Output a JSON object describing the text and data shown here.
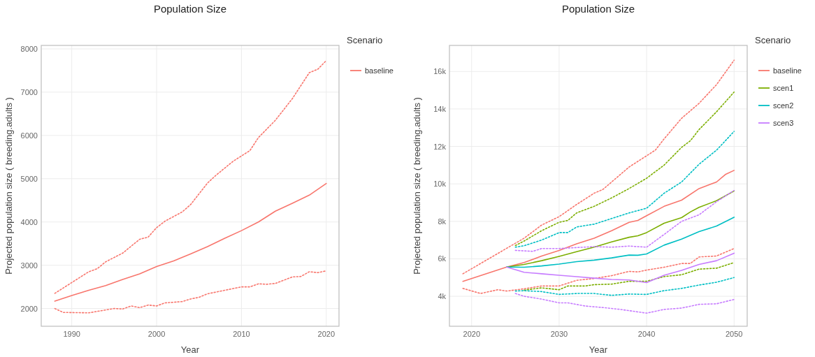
{
  "chart_data": [
    {
      "type": "line",
      "title": "Population Size",
      "xlabel": "Year",
      "ylabel": "Projected population size ( breeding.adults )",
      "legend_title": "Scenario",
      "legend": "right",
      "grid": true,
      "xlim": [
        1986.4,
        2021.5
      ],
      "xticks": [
        1990,
        2000,
        2010,
        2020
      ],
      "ylim": [
        1590,
        8080
      ],
      "yticks": [
        2000,
        3000,
        4000,
        5000,
        6000,
        7000,
        8000
      ],
      "series": [
        {
          "name": "baseline",
          "color": "#f8766d",
          "line_style": "solid",
          "x": [
            1988,
            1990,
            1992,
            1994,
            1996,
            1998,
            2000,
            2002,
            2004,
            2006,
            2008,
            2010,
            2012,
            2014,
            2016,
            2018,
            2020
          ],
          "values": [
            2170,
            2300,
            2420,
            2530,
            2670,
            2800,
            2970,
            3100,
            3260,
            3430,
            3620,
            3800,
            4000,
            4250,
            4430,
            4620,
            4890
          ]
        },
        {
          "color": "#f8766d",
          "line_style": "dotted",
          "x": [
            1988,
            1990,
            1992,
            1993,
            1994,
            1996,
            1998,
            1999,
            2000,
            2001,
            2003,
            2004,
            2006,
            2007,
            2009,
            2011,
            2012,
            2014,
            2016,
            2018,
            2019,
            2020
          ],
          "values": [
            2350,
            2600,
            2850,
            2920,
            3080,
            3280,
            3600,
            3650,
            3870,
            4020,
            4230,
            4400,
            4900,
            5080,
            5400,
            5650,
            5950,
            6350,
            6850,
            7450,
            7530,
            7730
          ]
        },
        {
          "color": "#f8766d",
          "line_style": "dotted",
          "x": [
            1988,
            1989,
            1992,
            1995,
            1996,
            1997,
            1998,
            1999,
            2000,
            2001,
            2003,
            2004,
            2005,
            2006,
            2008,
            2010,
            2011,
            2012,
            2013,
            2014,
            2016,
            2017,
            2018,
            2019,
            2020
          ],
          "values": [
            2000,
            1910,
            1900,
            2000,
            1990,
            2060,
            2020,
            2080,
            2060,
            2130,
            2160,
            2220,
            2260,
            2340,
            2420,
            2500,
            2500,
            2570,
            2560,
            2580,
            2730,
            2740,
            2850,
            2830,
            2870
          ]
        }
      ]
    },
    {
      "type": "line",
      "title": "Population Size",
      "xlabel": "Year",
      "ylabel": "Projected population size ( breeding.adults )",
      "legend_title": "Scenario",
      "legend": "right",
      "grid": true,
      "xlim": [
        2017.46,
        2051.5
      ],
      "xticks": [
        2020,
        2030,
        2040,
        2050
      ],
      "ylim": [
        2400,
        17390
      ],
      "yticks": [
        {
          "value": 4000,
          "label": "4k"
        },
        {
          "value": 6000,
          "label": "6k"
        },
        {
          "value": 8000,
          "label": "8k"
        },
        {
          "value": 10000,
          "label": "10k"
        },
        {
          "value": 12000,
          "label": "12k"
        },
        {
          "value": 14000,
          "label": "14k"
        },
        {
          "value": 16000,
          "label": "16k"
        }
      ],
      "series": [
        {
          "name": "baseline",
          "color": "#f8766d",
          "line_style": "solid",
          "x": [
            2019,
            2024,
            2026,
            2028,
            2030,
            2032,
            2034,
            2036,
            2038,
            2039,
            2040,
            2042,
            2044,
            2046,
            2048,
            2049,
            2050
          ],
          "values": [
            4800,
            5560,
            5800,
            6150,
            6450,
            6800,
            7100,
            7500,
            7950,
            8050,
            8300,
            8800,
            9130,
            9750,
            10100,
            10500,
            10720
          ]
        },
        {
          "color": "#f8766d",
          "line_style": "dotted",
          "x": [
            2019,
            2024,
            2026,
            2028,
            2030,
            2032,
            2034,
            2035,
            2036,
            2038,
            2040,
            2041,
            2042,
            2044,
            2046,
            2048,
            2050
          ],
          "values": [
            5200,
            6560,
            7100,
            7800,
            8250,
            8900,
            9500,
            9700,
            10100,
            10900,
            11500,
            11800,
            12400,
            13500,
            14300,
            15300,
            16600
          ]
        },
        {
          "color": "#f8766d",
          "line_style": "dotted",
          "x": [
            2019,
            2021,
            2023,
            2024,
            2026,
            2028,
            2030,
            2032,
            2034,
            2036,
            2038,
            2039,
            2040,
            2042,
            2044,
            2045,
            2046,
            2048,
            2050
          ],
          "values": [
            4420,
            4150,
            4350,
            4280,
            4400,
            4550,
            4550,
            4850,
            4950,
            5100,
            5330,
            5300,
            5400,
            5550,
            5750,
            5750,
            6100,
            6150,
            6550
          ]
        },
        {
          "name": "scen1",
          "color": "#7cae00",
          "line_style": "solid",
          "x": [
            2024,
            2026,
            2028,
            2030,
            2032,
            2034,
            2036,
            2038,
            2039,
            2040,
            2042,
            2044,
            2045,
            2046,
            2048,
            2050
          ],
          "values": [
            5560,
            5700,
            5900,
            6130,
            6380,
            6620,
            6900,
            7150,
            7230,
            7400,
            7900,
            8200,
            8500,
            8750,
            9100,
            9620
          ]
        },
        {
          "color": "#7cae00",
          "line_style": "dotted",
          "x": [
            2025,
            2026,
            2028,
            2030,
            2031,
            2032,
            2034,
            2036,
            2038,
            2040,
            2042,
            2044,
            2045,
            2046,
            2048,
            2050
          ],
          "values": [
            6710,
            6950,
            7500,
            7950,
            8050,
            8450,
            8800,
            9250,
            9750,
            10300,
            11000,
            11950,
            12300,
            12900,
            13850,
            14900
          ]
        },
        {
          "color": "#7cae00",
          "line_style": "dotted",
          "x": [
            2026,
            2028,
            2030,
            2031,
            2033,
            2034,
            2036,
            2038,
            2040,
            2042,
            2044,
            2046,
            2048,
            2050
          ],
          "values": [
            4330,
            4450,
            4350,
            4550,
            4550,
            4620,
            4650,
            4800,
            4800,
            5050,
            5150,
            5450,
            5500,
            5800
          ]
        },
        {
          "name": "scen2",
          "color": "#00bfc4",
          "line_style": "solid",
          "x": [
            2024,
            2026,
            2028,
            2030,
            2032,
            2034,
            2036,
            2038,
            2039,
            2040,
            2042,
            2044,
            2046,
            2048,
            2050
          ],
          "values": [
            5560,
            5550,
            5620,
            5720,
            5850,
            5930,
            6050,
            6200,
            6190,
            6260,
            6730,
            7050,
            7450,
            7750,
            8220
          ]
        },
        {
          "color": "#00bfc4",
          "line_style": "dotted",
          "x": [
            2025,
            2026,
            2028,
            2030,
            2031,
            2032,
            2034,
            2036,
            2038,
            2040,
            2042,
            2044,
            2046,
            2048,
            2050
          ],
          "values": [
            6620,
            6700,
            7000,
            7400,
            7400,
            7700,
            7850,
            8150,
            8450,
            8700,
            9500,
            10100,
            11050,
            11800,
            12800
          ]
        },
        {
          "color": "#00bfc4",
          "line_style": "dotted",
          "x": [
            2025,
            2026,
            2028,
            2030,
            2032,
            2034,
            2036,
            2038,
            2040,
            2042,
            2044,
            2046,
            2048,
            2050
          ],
          "values": [
            4280,
            4300,
            4250,
            4100,
            4150,
            4150,
            4050,
            4120,
            4100,
            4300,
            4420,
            4600,
            4750,
            5000
          ]
        },
        {
          "name": "scen3",
          "color": "#c77cff",
          "line_style": "solid",
          "x": [
            2024,
            2026,
            2028,
            2030,
            2032,
            2034,
            2036,
            2038,
            2040,
            2042,
            2044,
            2046,
            2048,
            2050
          ],
          "values": [
            5560,
            5280,
            5200,
            5120,
            5050,
            4970,
            4900,
            4870,
            4730,
            5120,
            5380,
            5700,
            5900,
            6300
          ]
        },
        {
          "color": "#c77cff",
          "line_style": "dotted",
          "x": [
            2025,
            2027,
            2028,
            2030,
            2032,
            2034,
            2036,
            2038,
            2040,
            2042,
            2044,
            2046,
            2048,
            2050
          ],
          "values": [
            6450,
            6400,
            6550,
            6550,
            6600,
            6650,
            6620,
            6680,
            6620,
            7300,
            8000,
            8350,
            9050,
            9650
          ]
        },
        {
          "color": "#c77cff",
          "line_style": "dotted",
          "x": [
            2025,
            2026,
            2028,
            2030,
            2031,
            2033,
            2035,
            2037,
            2040,
            2042,
            2044,
            2046,
            2048,
            2050
          ],
          "values": [
            4150,
            4000,
            3850,
            3650,
            3650,
            3480,
            3400,
            3300,
            3100,
            3300,
            3370,
            3570,
            3600,
            3830
          ]
        }
      ]
    }
  ]
}
